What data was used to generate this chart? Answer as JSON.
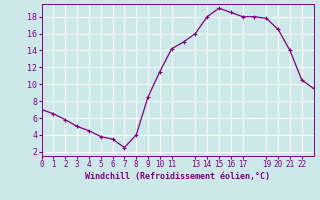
{
  "x": [
    0,
    1,
    2,
    3,
    4,
    5,
    6,
    7,
    8,
    9,
    10,
    11,
    12,
    13,
    14,
    15,
    16,
    17,
    18,
    19,
    20,
    21,
    22,
    23
  ],
  "y": [
    7.0,
    6.5,
    5.8,
    5.0,
    4.5,
    3.8,
    3.5,
    2.5,
    4.0,
    8.5,
    11.5,
    14.2,
    15.0,
    16.0,
    18.0,
    19.0,
    18.5,
    18.0,
    18.0,
    17.8,
    16.5,
    14.0,
    10.5,
    9.5
  ],
  "line_color": "#800080",
  "marker": "+",
  "marker_size": 3,
  "marker_lw": 0.8,
  "bg_color": "#cce8e8",
  "grid_color": "#b0d8d8",
  "xlabel": "Windchill (Refroidissement éolien,°C)",
  "xlim": [
    0,
    23
  ],
  "ylim": [
    1.5,
    19.5
  ],
  "yticks": [
    2,
    4,
    6,
    8,
    10,
    12,
    14,
    16,
    18
  ],
  "xticks": [
    0,
    1,
    2,
    3,
    4,
    5,
    6,
    7,
    8,
    9,
    10,
    11,
    13,
    14,
    15,
    16,
    17,
    19,
    20,
    21,
    22
  ],
  "xtick_labels": [
    "0",
    "1",
    "2",
    "3",
    "4",
    "5",
    "6",
    "7",
    "8",
    "9",
    "10",
    "11",
    "13",
    "14",
    "15",
    "16",
    "17",
    "19",
    "20",
    "21",
    "22"
  ],
  "tick_color": "#800080",
  "label_color": "#800080",
  "spine_color": "#800080",
  "ytick_fontsize": 6,
  "xtick_fontsize": 5.5,
  "xlabel_fontsize": 6,
  "line_width": 0.9
}
